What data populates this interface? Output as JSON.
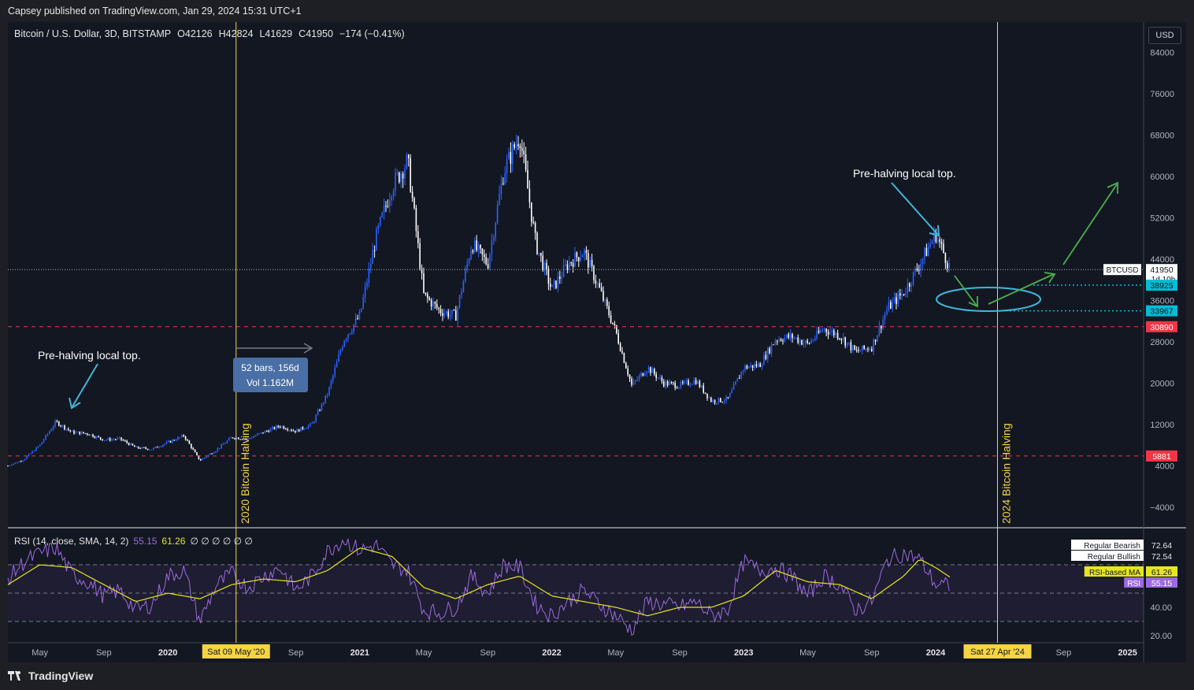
{
  "header": {
    "publisher_line": "Capsey published on TradingView.com, Jan 29, 2024 15:31 UTC+1"
  },
  "footer": {
    "brand": "TradingView"
  },
  "currency_button": "USD",
  "chart_data": [
    {
      "type": "candlestick",
      "title": "Bitcoin / U.S. Dollar, 3D, BITSTAMP",
      "ohlc_label": {
        "o_key": "O",
        "o_val": "42126",
        "h_key": "H",
        "h_val": "42824",
        "l_key": "L",
        "l_val": "41629",
        "c_key": "C",
        "c_val": "41950",
        "change": "−174 (−0.41%)"
      },
      "y_ticks": [
        "84000",
        "76000",
        "68000",
        "60000",
        "52000",
        "44000",
        "36000",
        "28000",
        "20000",
        "12000",
        "4000",
        "−4000"
      ],
      "x_ticks": [
        "May",
        "Sep",
        "2020",
        "Sep",
        "2021",
        "May",
        "Sep",
        "2022",
        "May",
        "Sep",
        "2023",
        "May",
        "Sep",
        "2024",
        "Sep",
        "2025"
      ],
      "ylim": [
        -8000,
        88000
      ],
      "x_range": [
        "2019-03",
        "2025-02"
      ],
      "price_path": [
        [
          "2019-03",
          4000
        ],
        [
          "2019-04",
          5200
        ],
        [
          "2019-05",
          8000
        ],
        [
          "2019-06",
          12500
        ],
        [
          "2019-07",
          10500
        ],
        [
          "2019-08",
          10200
        ],
        [
          "2019-09",
          9000
        ],
        [
          "2019-10",
          9200
        ],
        [
          "2019-11",
          7500
        ],
        [
          "2019-12",
          7200
        ],
        [
          "2020-01",
          8500
        ],
        [
          "2020-02",
          9800
        ],
        [
          "2020-03",
          5000
        ],
        [
          "2020-04",
          7000
        ],
        [
          "2020-05",
          9500
        ],
        [
          "2020-06",
          9200
        ],
        [
          "2020-07",
          10500
        ],
        [
          "2020-08",
          11700
        ],
        [
          "2020-09",
          10700
        ],
        [
          "2020-10",
          12000
        ],
        [
          "2020-11",
          18000
        ],
        [
          "2020-12",
          28500
        ],
        [
          "2021-01",
          33000
        ],
        [
          "2021-02",
          48000
        ],
        [
          "2021-03",
          58000
        ],
        [
          "2021-04",
          63000
        ],
        [
          "2021-05",
          37000
        ],
        [
          "2021-06",
          34000
        ],
        [
          "2021-07",
          33000
        ],
        [
          "2021-08",
          47000
        ],
        [
          "2021-09",
          43000
        ],
        [
          "2021-10",
          61000
        ],
        [
          "2021-11",
          68000
        ],
        [
          "2021-12",
          47000
        ],
        [
          "2022-01",
          38000
        ],
        [
          "2022-02",
          43000
        ],
        [
          "2022-03",
          45500
        ],
        [
          "2022-04",
          38000
        ],
        [
          "2022-05",
          30000
        ],
        [
          "2022-06",
          19500
        ],
        [
          "2022-07",
          23000
        ],
        [
          "2022-08",
          20000
        ],
        [
          "2022-09",
          19500
        ],
        [
          "2022-10",
          20500
        ],
        [
          "2022-11",
          16500
        ],
        [
          "2022-12",
          16800
        ],
        [
          "2023-01",
          23000
        ],
        [
          "2023-02",
          23500
        ],
        [
          "2023-03",
          28500
        ],
        [
          "2023-04",
          29000
        ],
        [
          "2023-05",
          27500
        ],
        [
          "2023-06",
          30500
        ],
        [
          "2023-07",
          29200
        ],
        [
          "2023-08",
          26000
        ],
        [
          "2023-09",
          27000
        ],
        [
          "2023-10",
          34500
        ],
        [
          "2023-11",
          37500
        ],
        [
          "2023-12",
          43000
        ],
        [
          "2024-01",
          48900
        ],
        [
          "2024-01-29",
          41950
        ]
      ],
      "annotations": [
        {
          "text": "Pre-halving local top."
        },
        {
          "text": "Pre-halving local top."
        },
        {
          "text": "2020 Bitcoin Halving"
        },
        {
          "text": "2024 Bitcoin Halving"
        }
      ],
      "measure": {
        "line1": "52 bars, 156d",
        "line2": "Vol 1.162M"
      },
      "date_badges": [
        "Sat 09 May '20",
        "Sat 27 Apr '24"
      ],
      "price_labels": [
        {
          "text": "BTCUSD",
          "value": "41950",
          "sub": "1d 10h",
          "color": "#ffffff"
        },
        {
          "value": "38925",
          "color": "#00bcd4"
        },
        {
          "value": "33967",
          "color": "#00bcd4"
        },
        {
          "value": "30890",
          "color": "#f23645"
        },
        {
          "value": "5881",
          "color": "#f23645"
        }
      ],
      "horizontal_levels": [
        30890,
        5881,
        38925,
        33967,
        41950
      ]
    },
    {
      "type": "line",
      "title": "RSI (14, close, SMA, 14, 2)",
      "values_header": {
        "rsi": "55.15",
        "ma": "61.26",
        "extras": "∅ ∅ ∅ ∅ ∅ ∅"
      },
      "y_ticks": [
        "40.00",
        "20.00"
      ],
      "ylim": [
        15,
        95
      ],
      "bands": [
        70,
        50,
        30
      ],
      "series": [
        {
          "name": "RSI",
          "color": "#9c6ade",
          "last": "55.15"
        },
        {
          "name": "RSI-based MA",
          "color": "#e6e61f",
          "last": "61.26"
        }
      ],
      "rsi_path": [
        [
          "2019-03",
          60
        ],
        [
          "2019-04",
          72
        ],
        [
          "2019-05",
          78
        ],
        [
          "2019-06",
          82
        ],
        [
          "2019-07",
          63
        ],
        [
          "2019-08",
          58
        ],
        [
          "2019-09",
          48
        ],
        [
          "2019-10",
          52
        ],
        [
          "2019-11",
          38
        ],
        [
          "2019-12",
          42
        ],
        [
          "2020-01",
          62
        ],
        [
          "2020-02",
          66
        ],
        [
          "2020-03",
          30
        ],
        [
          "2020-04",
          55
        ],
        [
          "2020-05",
          64
        ],
        [
          "2020-06",
          54
        ],
        [
          "2020-07",
          62
        ],
        [
          "2020-08",
          68
        ],
        [
          "2020-09",
          52
        ],
        [
          "2020-10",
          62
        ],
        [
          "2020-11",
          80
        ],
        [
          "2020-12",
          88
        ],
        [
          "2021-01",
          80
        ],
        [
          "2021-02",
          84
        ],
        [
          "2021-03",
          70
        ],
        [
          "2021-04",
          66
        ],
        [
          "2021-05",
          38
        ],
        [
          "2021-06",
          36
        ],
        [
          "2021-07",
          40
        ],
        [
          "2021-08",
          62
        ],
        [
          "2021-09",
          50
        ],
        [
          "2021-10",
          70
        ],
        [
          "2021-11",
          68
        ],
        [
          "2021-12",
          42
        ],
        [
          "2022-01",
          34
        ],
        [
          "2022-02",
          44
        ],
        [
          "2022-03",
          52
        ],
        [
          "2022-04",
          42
        ],
        [
          "2022-05",
          34
        ],
        [
          "2022-06",
          24
        ],
        [
          "2022-07",
          44
        ],
        [
          "2022-08",
          42
        ],
        [
          "2022-09",
          40
        ],
        [
          "2022-10",
          44
        ],
        [
          "2022-11",
          34
        ],
        [
          "2022-12",
          38
        ],
        [
          "2023-01",
          72
        ],
        [
          "2023-02",
          66
        ],
        [
          "2023-03",
          68
        ],
        [
          "2023-04",
          62
        ],
        [
          "2023-05",
          48
        ],
        [
          "2023-06",
          62
        ],
        [
          "2023-07",
          56
        ],
        [
          "2023-08",
          38
        ],
        [
          "2023-09",
          44
        ],
        [
          "2023-10",
          74
        ],
        [
          "2023-11",
          78
        ],
        [
          "2023-12",
          74
        ],
        [
          "2024-01",
          56
        ],
        [
          "2024-01-29",
          55
        ]
      ],
      "ma_path": [
        [
          "2019-03",
          56
        ],
        [
          "2019-05",
          70
        ],
        [
          "2019-07",
          68
        ],
        [
          "2019-09",
          56
        ],
        [
          "2019-11",
          44
        ],
        [
          "2020-01",
          50
        ],
        [
          "2020-03",
          46
        ],
        [
          "2020-05",
          56
        ],
        [
          "2020-07",
          60
        ],
        [
          "2020-09",
          58
        ],
        [
          "2020-11",
          66
        ],
        [
          "2021-01",
          82
        ],
        [
          "2021-03",
          76
        ],
        [
          "2021-05",
          54
        ],
        [
          "2021-07",
          46
        ],
        [
          "2021-09",
          56
        ],
        [
          "2021-11",
          62
        ],
        [
          "2022-01",
          48
        ],
        [
          "2022-03",
          44
        ],
        [
          "2022-05",
          40
        ],
        [
          "2022-07",
          34
        ],
        [
          "2022-09",
          40
        ],
        [
          "2022-11",
          40
        ],
        [
          "2023-01",
          48
        ],
        [
          "2023-03",
          66
        ],
        [
          "2023-05",
          58
        ],
        [
          "2023-07",
          56
        ],
        [
          "2023-09",
          46
        ],
        [
          "2023-11",
          62
        ],
        [
          "2023-12",
          74
        ],
        [
          "2024-01",
          68
        ],
        [
          "2024-01-29",
          61
        ]
      ],
      "legend_boxes": [
        {
          "label": "Regular Bearish",
          "value": "72.64"
        },
        {
          "label": "Regular Bullish",
          "value": "72.54"
        },
        {
          "label": "RSI-based MA",
          "value": "61.26"
        },
        {
          "label": "RSI",
          "value": "55.15"
        }
      ]
    }
  ],
  "colors": {
    "background": "#131722",
    "up": "#2962ff",
    "down": "#ffffff",
    "halving": "#f5d442",
    "support": "#f23645",
    "cyan": "#00bcd4",
    "green_arrow": "#4caf50"
  }
}
